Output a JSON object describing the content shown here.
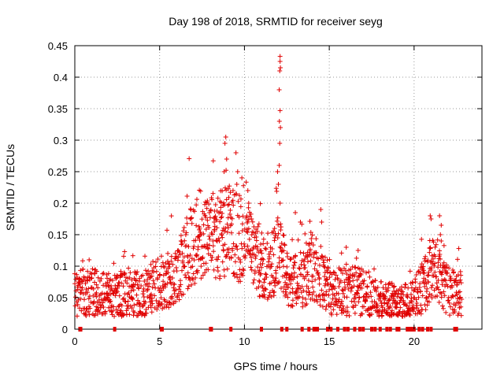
{
  "chart_data": {
    "type": "scatter",
    "title": "Day 198 of 2018, SRMTID for receiver seyg",
    "xlabel": "GPS time / hours",
    "ylabel": "SRMTID / TECUs",
    "xlim": [
      0,
      24
    ],
    "ylim": [
      0,
      0.45
    ],
    "grid": true,
    "marker": "+",
    "color": "#e00000",
    "x_ticks": [
      "0",
      "5",
      "10",
      "15",
      "20"
    ],
    "y_ticks": [
      "0",
      "0.05",
      "0.1",
      "0.15",
      "0.2",
      "0.25",
      "0.3",
      "0.35",
      "0.4",
      "0.45"
    ],
    "series": [
      {
        "name": "SRMTID",
        "profile": {
          "x": [
            0,
            1,
            2,
            3,
            4,
            5,
            6,
            6.8,
            7.5,
            8.5,
            9.0,
            9.8,
            10.5,
            11.0,
            11.5,
            12.0,
            12.5,
            13.0,
            13.5,
            14.0,
            14.5,
            15.0,
            16.0,
            17.0,
            18.0,
            19.0,
            20.0,
            20.8,
            21.3,
            22.0,
            22.8
          ],
          "y": [
            0.055,
            0.06,
            0.05,
            0.055,
            0.055,
            0.075,
            0.085,
            0.13,
            0.14,
            0.15,
            0.16,
            0.14,
            0.12,
            0.1,
            0.1,
            0.12,
            0.085,
            0.08,
            0.08,
            0.1,
            0.085,
            0.06,
            0.06,
            0.06,
            0.045,
            0.04,
            0.045,
            0.08,
            0.1,
            0.06,
            0.06
          ]
        },
        "spread": 0.018,
        "peaks": [
          {
            "x": 8.9,
            "y": 0.305
          },
          {
            "x": 8.85,
            "y": 0.295
          },
          {
            "x": 8.95,
            "y": 0.27
          },
          {
            "x": 8.8,
            "y": 0.25
          },
          {
            "x": 9.5,
            "y": 0.28
          },
          {
            "x": 9.6,
            "y": 0.25
          },
          {
            "x": 9.55,
            "y": 0.23
          },
          {
            "x": 10.2,
            "y": 0.22
          },
          {
            "x": 10.25,
            "y": 0.2
          },
          {
            "x": 11.95,
            "y": 0.25
          },
          {
            "x": 12.05,
            "y": 0.26
          },
          {
            "x": 12.0,
            "y": 0.23
          },
          {
            "x": 12.1,
            "y": 0.2
          },
          {
            "x": 12.08,
            "y": 0.295
          },
          {
            "x": 12.12,
            "y": 0.32
          },
          {
            "x": 12.06,
            "y": 0.33
          },
          {
            "x": 12.1,
            "y": 0.347
          },
          {
            "x": 12.05,
            "y": 0.38
          },
          {
            "x": 12.08,
            "y": 0.41
          },
          {
            "x": 12.12,
            "y": 0.415
          },
          {
            "x": 12.1,
            "y": 0.425
          },
          {
            "x": 12.1,
            "y": 0.433
          },
          {
            "x": 13.0,
            "y": 0.185
          },
          {
            "x": 13.3,
            "y": 0.17
          },
          {
            "x": 14.5,
            "y": 0.19
          },
          {
            "x": 14.55,
            "y": 0.17
          },
          {
            "x": 16.7,
            "y": 0.125
          },
          {
            "x": 16.0,
            "y": 0.13
          },
          {
            "x": 20.95,
            "y": 0.18
          },
          {
            "x": 21.0,
            "y": 0.175
          },
          {
            "x": 21.5,
            "y": 0.18
          },
          {
            "x": 21.6,
            "y": 0.165
          },
          {
            "x": 21.55,
            "y": 0.15
          },
          {
            "x": 21.6,
            "y": 0.14
          }
        ],
        "zero_x": [
          0.3,
          0.35,
          2.35,
          5.1,
          5.15,
          8.0,
          8.05,
          9.2,
          11.0,
          12.2,
          12.5,
          13.4,
          13.8,
          14.1,
          14.2,
          14.3,
          14.9,
          15.1,
          15.5,
          15.9,
          16.1,
          16.5,
          16.8,
          17.0,
          17.5,
          17.7,
          18.0,
          18.4,
          18.6,
          19.0,
          19.1,
          19.6,
          19.7,
          19.8,
          19.9,
          20.0,
          20.3,
          20.5,
          20.8,
          21.0,
          22.4,
          22.5
        ]
      }
    ]
  }
}
